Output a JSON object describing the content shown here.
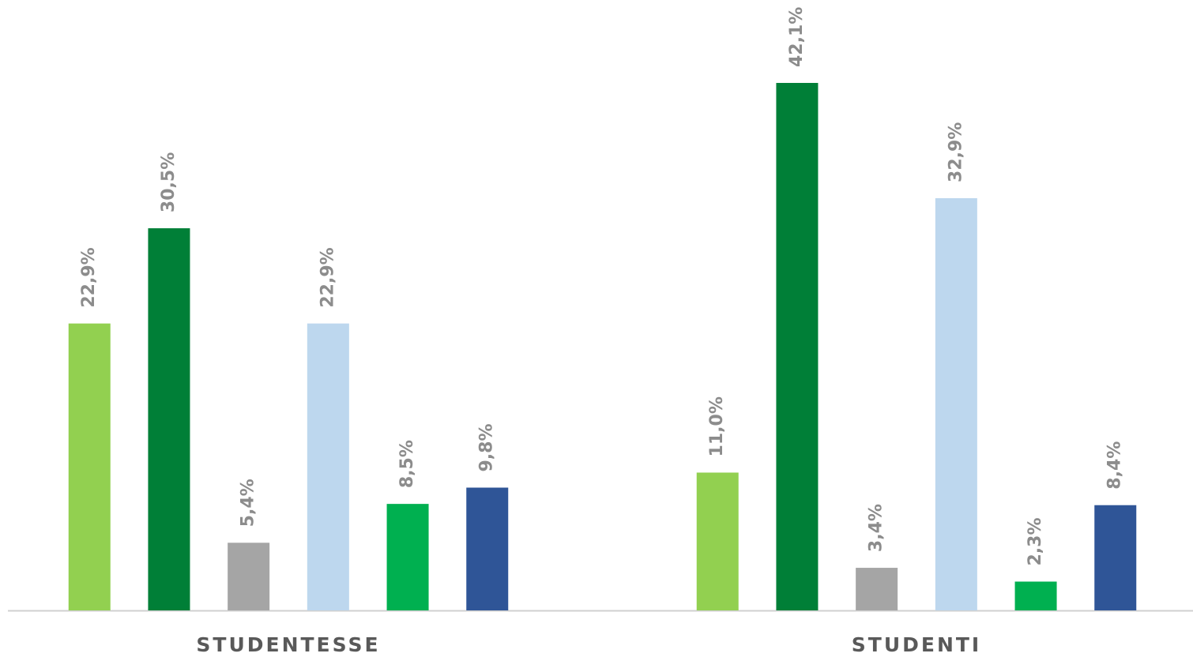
{
  "chart_data": {
    "type": "bar",
    "categories": [
      "STUDENTESSE",
      "STUDENTI"
    ],
    "series": [
      {
        "color": "#92d050",
        "values": [
          22.9,
          11.0
        ],
        "value_labels": [
          "22,9%",
          "11,0%"
        ]
      },
      {
        "color": "#007f37",
        "values": [
          30.5,
          42.1
        ],
        "value_labels": [
          "30,5%",
          "42,1%"
        ]
      },
      {
        "color": "#a5a5a5",
        "values": [
          5.4,
          3.4
        ],
        "value_labels": [
          "5,4%",
          "3,4%"
        ]
      },
      {
        "color": "#bdd7ee",
        "values": [
          22.9,
          32.9
        ],
        "value_labels": [
          "22,9%",
          "32,9%"
        ]
      },
      {
        "color": "#00b050",
        "values": [
          8.5,
          2.3
        ],
        "value_labels": [
          "8,5%",
          "2,3%"
        ]
      },
      {
        "color": "#2f5597",
        "values": [
          9.8,
          8.4
        ],
        "value_labels": [
          "9,8%",
          "8,4%"
        ]
      }
    ],
    "ylim": [
      0,
      48
    ]
  }
}
